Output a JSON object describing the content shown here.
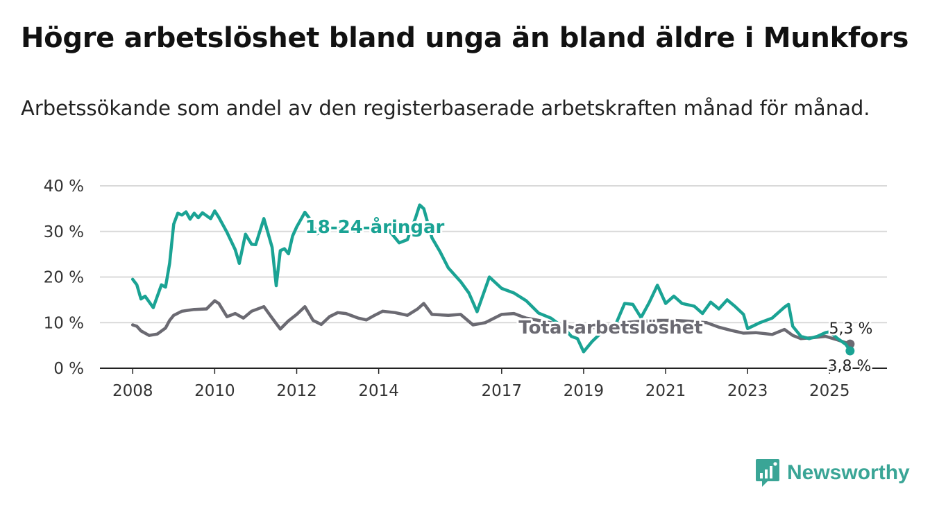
{
  "title": "Högre arbetslöshet bland unga än bland äldre i Munkfors",
  "subtitle": "Arbetssökande som andel av den registerbaserade arbetskraften månad för månad.",
  "brand": "Newsworthy",
  "colors": {
    "youth": "#1aa394",
    "total": "#6b6a72",
    "grid": "#d9d9d9",
    "axis": "#222222",
    "brand": "#3aa596"
  },
  "chart_data": {
    "type": "line",
    "title": "Högre arbetslöshet bland unga än bland äldre i Munkfors",
    "x_tick_labels": [
      "2008",
      "2010",
      "2012",
      "2014",
      "2017",
      "2019",
      "2021",
      "2023",
      "2025"
    ],
    "x_ticks": [
      2008.0,
      2010.0,
      2012.0,
      2014.0,
      2017.0,
      2019.0,
      2021.0,
      2023.0,
      2025.0
    ],
    "y_tick_labels": [
      "0 %",
      "10 %",
      "20 %",
      "30 %",
      "40 %"
    ],
    "y_ticks": [
      0,
      10,
      20,
      30,
      40
    ],
    "ylim": [
      0,
      40
    ],
    "xlim": [
      2007.2,
      2026.4
    ],
    "grid": true,
    "series": [
      {
        "name": "18-24-åringar",
        "color": "#1aa394",
        "end_label": "3,8 %",
        "x": [
          2008.0,
          2008.1,
          2008.2,
          2008.3,
          2008.5,
          2008.7,
          2008.8,
          2008.9,
          2009.0,
          2009.1,
          2009.2,
          2009.3,
          2009.4,
          2009.5,
          2009.6,
          2009.7,
          2009.9,
          2010.0,
          2010.1,
          2010.3,
          2010.5,
          2010.6,
          2010.75,
          2010.9,
          2011.0,
          2011.2,
          2011.4,
          2011.5,
          2011.6,
          2011.7,
          2011.8,
          2011.9,
          2012.0,
          2012.1,
          2012.2,
          2012.3,
          2012.5,
          2012.7,
          2012.9,
          2013.2,
          2013.5,
          2013.8,
          2014.2,
          2014.5,
          2014.7,
          2014.9,
          2015.0,
          2015.1,
          2015.3,
          2015.5,
          2015.7,
          2016.0,
          2016.2,
          2016.4,
          2016.7,
          2017.0,
          2017.3,
          2017.6,
          2017.9,
          2018.2,
          2018.5,
          2018.7,
          2018.85,
          2019.0,
          2019.2,
          2019.5,
          2019.8,
          2020.0,
          2020.2,
          2020.4,
          2020.6,
          2020.8,
          2021.0,
          2021.2,
          2021.4,
          2021.7,
          2021.9,
          2022.1,
          2022.3,
          2022.5,
          2022.7,
          2022.9,
          2023.0,
          2023.3,
          2023.6,
          2023.9,
          2024.0,
          2024.1,
          2024.3,
          2024.5,
          2024.7,
          2024.9,
          2025.0,
          2025.2,
          2025.4,
          2025.5
        ],
        "y": [
          19.5,
          18.3,
          15.2,
          15.8,
          13.3,
          18.3,
          17.8,
          23.0,
          31.6,
          34.0,
          33.6,
          34.3,
          32.7,
          34.0,
          33.0,
          34.1,
          32.8,
          34.5,
          33.1,
          29.8,
          26.0,
          23.0,
          29.4,
          27.2,
          27.1,
          32.8,
          26.5,
          18.1,
          25.8,
          26.2,
          25.1,
          29.0,
          31.0,
          32.6,
          34.2,
          33.0,
          29.5,
          30.5,
          31.0,
          30.3,
          29.9,
          31.0,
          30.8,
          27.5,
          28.2,
          33.0,
          35.8,
          35.0,
          28.6,
          25.5,
          22.0,
          19.0,
          16.5,
          12.4,
          20.0,
          17.5,
          16.5,
          14.8,
          12.1,
          11.0,
          9.0,
          7.0,
          6.5,
          3.6,
          5.8,
          8.4,
          10.0,
          14.2,
          14.0,
          11.1,
          14.4,
          18.2,
          14.2,
          15.8,
          14.2,
          13.6,
          12.0,
          14.5,
          13.0,
          15.0,
          13.5,
          11.8,
          8.7,
          10.0,
          11.0,
          13.4,
          14.0,
          9.2,
          7.0,
          6.5,
          7.0,
          7.8,
          8.0,
          6.5,
          5.2,
          3.8
        ]
      },
      {
        "name": "Total arbetslöshet",
        "color": "#6b6a72",
        "end_label": "5,3 %",
        "x": [
          2008.0,
          2008.1,
          2008.2,
          2008.4,
          2008.6,
          2008.8,
          2008.9,
          2009.0,
          2009.2,
          2009.5,
          2009.8,
          2010.0,
          2010.1,
          2010.3,
          2010.5,
          2010.7,
          2010.9,
          2011.2,
          2011.4,
          2011.6,
          2011.8,
          2012.0,
          2012.2,
          2012.4,
          2012.6,
          2012.8,
          2013.0,
          2013.2,
          2013.5,
          2013.7,
          2013.9,
          2014.1,
          2014.4,
          2014.7,
          2014.95,
          2015.1,
          2015.3,
          2015.7,
          2016.0,
          2016.3,
          2016.6,
          2017.0,
          2017.3,
          2017.6,
          2017.9,
          2018.2,
          2018.5,
          2018.8,
          2019.0,
          2019.3,
          2019.6,
          2020.0,
          2020.4,
          2020.8,
          2021.2,
          2021.6,
          2022.0,
          2022.3,
          2022.6,
          2022.9,
          2023.2,
          2023.6,
          2023.9,
          2024.1,
          2024.3,
          2024.6,
          2024.9,
          2025.2,
          2025.5
        ],
        "y": [
          9.5,
          9.2,
          8.2,
          7.2,
          7.5,
          8.8,
          10.5,
          11.6,
          12.5,
          12.9,
          13.0,
          14.8,
          14.2,
          11.3,
          12.0,
          11.0,
          12.5,
          13.5,
          11.0,
          8.6,
          10.4,
          11.8,
          13.5,
          10.5,
          9.6,
          11.3,
          12.2,
          12.0,
          11.0,
          10.6,
          11.6,
          12.5,
          12.2,
          11.6,
          13.0,
          14.2,
          11.8,
          11.6,
          11.8,
          9.5,
          10.0,
          11.8,
          12.0,
          11.0,
          10.5,
          10.0,
          9.3,
          8.8,
          8.6,
          9.0,
          9.4,
          10.0,
          10.3,
          10.5,
          10.5,
          10.3,
          10.0,
          9.0,
          8.3,
          7.7,
          7.8,
          7.4,
          8.5,
          7.2,
          6.5,
          6.7,
          7.0,
          6.2,
          5.3
        ]
      }
    ]
  }
}
